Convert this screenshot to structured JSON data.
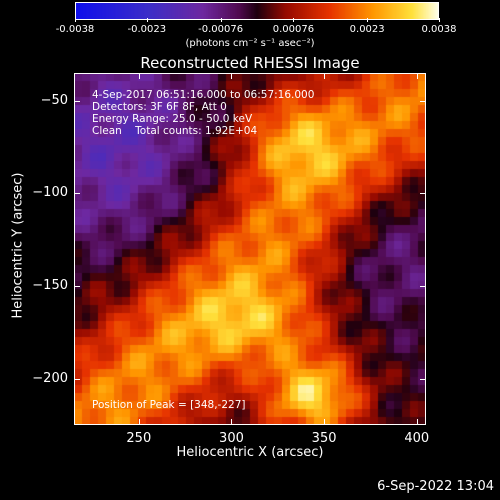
{
  "colorbar": {
    "ticks": [
      "-0.0038",
      "-0.0023",
      "-0.00076",
      "0.00076",
      "0.0023",
      "0.0038"
    ],
    "units_label": "(photons cm⁻² s⁻¹ asec⁻²)"
  },
  "chart_data": {
    "type": "heatmap",
    "title": "Reconstructed RHESSI Image",
    "xlabel": "Heliocentric X (arcsec)",
    "ylabel": "Heliocentric Y (arcsec)",
    "xlim": [
      215,
      405
    ],
    "ylim": [
      -225,
      -35
    ],
    "xticks": [
      250,
      300,
      350,
      400
    ],
    "yticks": [
      -50,
      -100,
      -150,
      -200
    ],
    "colorbar_range": [
      -0.0038,
      0.0038
    ],
    "annotations": {
      "date_range": "4-Sep-2017 06:51:16.000 to 06:57:16.000",
      "detectors": "Detectors: 3F 6F 8F, Att 0",
      "energy": "Energy Range: 25.0 - 50.0 keV",
      "clean": "Clean    Total counts: 1.92E+04",
      "peak": "Position of Peak = [348,-227]"
    },
    "peak_position": [
      348,
      -227
    ]
  },
  "footer": {
    "timestamp": "6-Sep-2022 13:04"
  },
  "colors": {
    "background": "#000000",
    "frame": "#ffffff"
  }
}
